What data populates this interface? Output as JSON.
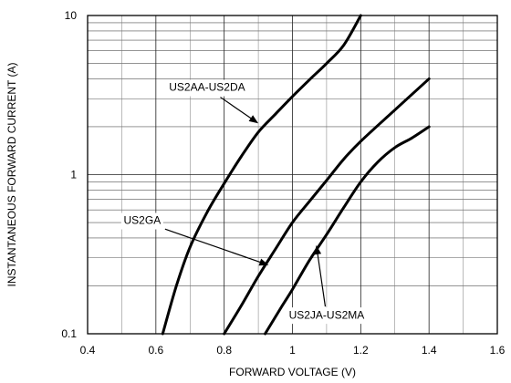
{
  "chart_data": {
    "type": "line",
    "title": "",
    "xlabel": "FORWARD VOLTAGE (V)",
    "ylabel": "INSTANTANEOUS FORWARD CURRENT (A)",
    "xlim": [
      0.4,
      1.6
    ],
    "ylim": [
      0.1,
      10
    ],
    "yscale": "log",
    "grid": true,
    "x_ticks": [
      0.4,
      0.6,
      0.8,
      1.0,
      1.2,
      1.4,
      1.6
    ],
    "x_tick_labels": [
      "0.4",
      "0.6",
      "0.8",
      "1",
      "1.2",
      "1.4",
      "1.6"
    ],
    "y_ticks": [
      0.1,
      1,
      10
    ],
    "y_tick_labels": [
      "0.1",
      "1",
      "10"
    ],
    "series": [
      {
        "name": "US2AA-US2DA",
        "points": [
          [
            0.62,
            0.1
          ],
          [
            0.66,
            0.2
          ],
          [
            0.7,
            0.35
          ],
          [
            0.75,
            0.58
          ],
          [
            0.8,
            0.88
          ],
          [
            0.85,
            1.3
          ],
          [
            0.9,
            1.85
          ],
          [
            0.95,
            2.4
          ],
          [
            1.0,
            3.1
          ],
          [
            1.05,
            3.95
          ],
          [
            1.1,
            5.0
          ],
          [
            1.15,
            6.5
          ],
          [
            1.2,
            10.0
          ]
        ],
        "label_pos": [
          0.75,
          3.5
        ],
        "arrow_to": [
          0.9,
          2.1
        ]
      },
      {
        "name": "US2GA",
        "points": [
          [
            0.8,
            0.1
          ],
          [
            0.85,
            0.15
          ],
          [
            0.9,
            0.23
          ],
          [
            0.95,
            0.34
          ],
          [
            1.0,
            0.5
          ],
          [
            1.05,
            0.68
          ],
          [
            1.1,
            0.92
          ],
          [
            1.15,
            1.25
          ],
          [
            1.2,
            1.62
          ],
          [
            1.3,
            2.55
          ],
          [
            1.4,
            4.0
          ]
        ],
        "label_pos": [
          0.56,
          0.51
        ],
        "arrow_to": [
          0.93,
          0.27
        ]
      },
      {
        "name": "US2JA-US2MA",
        "points": [
          [
            0.92,
            0.1
          ],
          [
            0.97,
            0.15
          ],
          [
            1.0,
            0.19
          ],
          [
            1.05,
            0.29
          ],
          [
            1.1,
            0.42
          ],
          [
            1.15,
            0.62
          ],
          [
            1.2,
            0.9
          ],
          [
            1.25,
            1.2
          ],
          [
            1.3,
            1.48
          ],
          [
            1.35,
            1.7
          ],
          [
            1.4,
            2.0
          ]
        ],
        "label_pos": [
          1.1,
          0.13
        ],
        "arrow_to": [
          1.07,
          0.36
        ]
      }
    ]
  }
}
